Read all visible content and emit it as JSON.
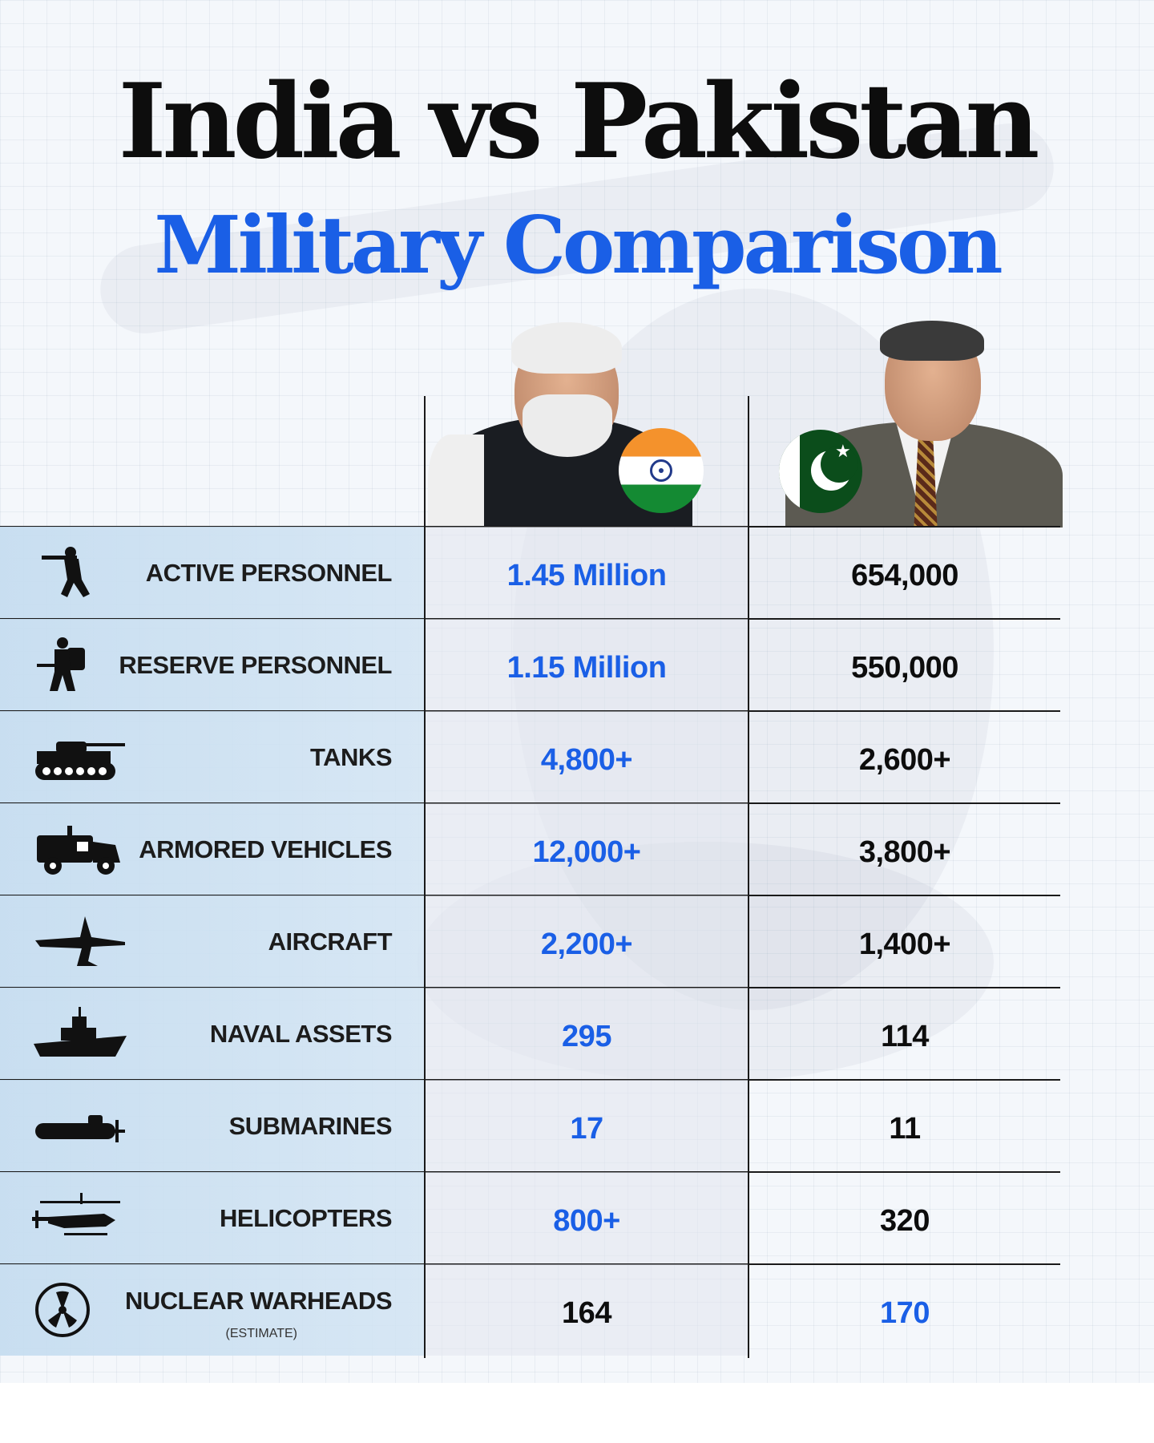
{
  "title": "India vs Pakistan",
  "subtitle": "Military Comparison",
  "colors": {
    "accent_blue": "#1a5fe6",
    "text_dark": "#0d0d0d",
    "label_bg": "#c6ddf0",
    "india_saffron": "#f4922c",
    "india_green": "#148a33",
    "pakistan_green": "#0b4d1b"
  },
  "rows": [
    {
      "label": "ACTIVE PERSONNEL",
      "note": "",
      "icon": "soldier-aiming-icon",
      "india": "1.45 Million",
      "pakistan": "654,000",
      "higher": "india"
    },
    {
      "label": "RESERVE PERSONNEL",
      "note": "",
      "icon": "soldier-backpack-icon",
      "india": "1.15 Million",
      "pakistan": "550,000",
      "higher": "india"
    },
    {
      "label": "TANKS",
      "note": "",
      "icon": "tank-icon",
      "india": "4,800+",
      "pakistan": "2,600+",
      "higher": "india"
    },
    {
      "label": "ARMORED VEHICLES",
      "note": "",
      "icon": "armored-vehicle-icon",
      "india": "12,000+",
      "pakistan": "3,800+",
      "higher": "india"
    },
    {
      "label": "AIRCRAFT",
      "note": "",
      "icon": "fighter-jet-icon",
      "india": "2,200+",
      "pakistan": "1,400+",
      "higher": "india"
    },
    {
      "label": "NAVAL ASSETS",
      "note": "",
      "icon": "warship-icon",
      "india": "295",
      "pakistan": "114",
      "higher": "india"
    },
    {
      "label": "SUBMARINES",
      "note": "",
      "icon": "submarine-icon",
      "india": "17",
      "pakistan": "11",
      "higher": "india"
    },
    {
      "label": "HELICOPTERS",
      "note": "",
      "icon": "helicopter-icon",
      "india": "800+",
      "pakistan": "320",
      "higher": "india"
    },
    {
      "label": "NUCLEAR WARHEADS",
      "note": "(ESTIMATE)",
      "icon": "radiation-icon",
      "india": "164",
      "pakistan": "170",
      "higher": "pakistan"
    }
  ]
}
